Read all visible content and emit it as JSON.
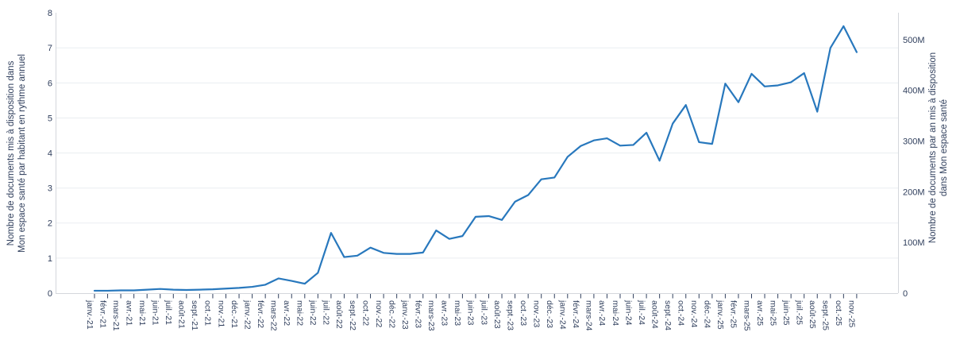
{
  "chart_data": {
    "type": "line",
    "title": "",
    "grid": true,
    "legend": "none",
    "line_color": "#2878bd",
    "text_color": "#2f3e5c",
    "grid_color": "#eaedf1",
    "axis_border_color": "#d4d7dc",
    "x_tick_labels": [
      "janv.-21",
      "févr.-21",
      "mars-21",
      "avr.-21",
      "mai-21",
      "juin-21",
      "juil.-21",
      "août-21",
      "sept.-21",
      "oct.-21",
      "nov.-21",
      "déc.-21",
      "janv.-22",
      "févr.-22",
      "mars-22",
      "avr.-22",
      "mai-22",
      "juin-22",
      "juil.-22",
      "août-22",
      "sept.-22",
      "oct.-22",
      "nov.-22",
      "déc.-22",
      "janv.-23",
      "févr.-23",
      "mars-23",
      "avr.-23",
      "mai-23",
      "juin-23",
      "juil.-23",
      "août-23",
      "sept.-23",
      "oct.-23",
      "nov.-23",
      "déc.-23",
      "janv.-24",
      "févr.-24",
      "mars-24",
      "avr.-24",
      "mai-24",
      "juin-24",
      "juil.-24",
      "août-24",
      "sept.-24",
      "oct.-24",
      "nov.-24",
      "déc.-24",
      "janv.-25",
      "févr.-25",
      "mars-25",
      "avr.-25",
      "mai-25",
      "juin-25",
      "juil.-25",
      "août-25",
      "sept.-25",
      "oct.-25",
      "nov.-25"
    ],
    "series": [
      {
        "name": "Nombre de documents mis à disposition dans Mon espace santé",
        "values": [
          0.07,
          0.07,
          0.08,
          0.08,
          0.1,
          0.12,
          0.1,
          0.09,
          0.1,
          0.11,
          0.13,
          0.15,
          0.18,
          0.24,
          0.42,
          0.35,
          0.27,
          0.58,
          1.72,
          1.03,
          1.07,
          1.3,
          1.15,
          1.12,
          1.12,
          1.16,
          1.79,
          1.55,
          1.63,
          2.18,
          2.2,
          2.09,
          2.61,
          2.8,
          3.25,
          3.3,
          3.89,
          4.2,
          4.36,
          4.42,
          4.21,
          4.23,
          4.58,
          3.78,
          4.84,
          5.37,
          4.31,
          4.26,
          5.98,
          5.45,
          6.26,
          5.9,
          5.93,
          6.02,
          6.28,
          5.18,
          7.0,
          7.62,
          6.88
        ]
      }
    ],
    "yaxis_left": {
      "title_line1": "Nombre de documents mis à disposition dans",
      "title_line2": "Mon espace santé par habitant en rythme annuel",
      "tick_labels": [
        "0",
        "1",
        "2",
        "3",
        "4",
        "5",
        "6",
        "7",
        "8"
      ],
      "tick_values": [
        0,
        1,
        2,
        3,
        4,
        5,
        6,
        7,
        8
      ],
      "range": [
        0,
        8
      ]
    },
    "yaxis_right": {
      "title_line1": "Nombre de documents par an mis à disposition",
      "title_line2": "dans Mon espace santé",
      "tick_labels": [
        "0",
        "100M",
        "200M",
        "300M",
        "400M",
        "500M"
      ],
      "tick_values_millions": [
        0,
        100,
        200,
        300,
        400,
        500
      ],
      "range_millions": [
        0,
        553
      ]
    },
    "xlabel": "",
    "ylabel_left": "Nombre de documents mis à disposition dans Mon espace santé par habitant en rythme annuel",
    "ylabel_right": "Nombre de documents par an mis à disposition dans Mon espace santé"
  }
}
